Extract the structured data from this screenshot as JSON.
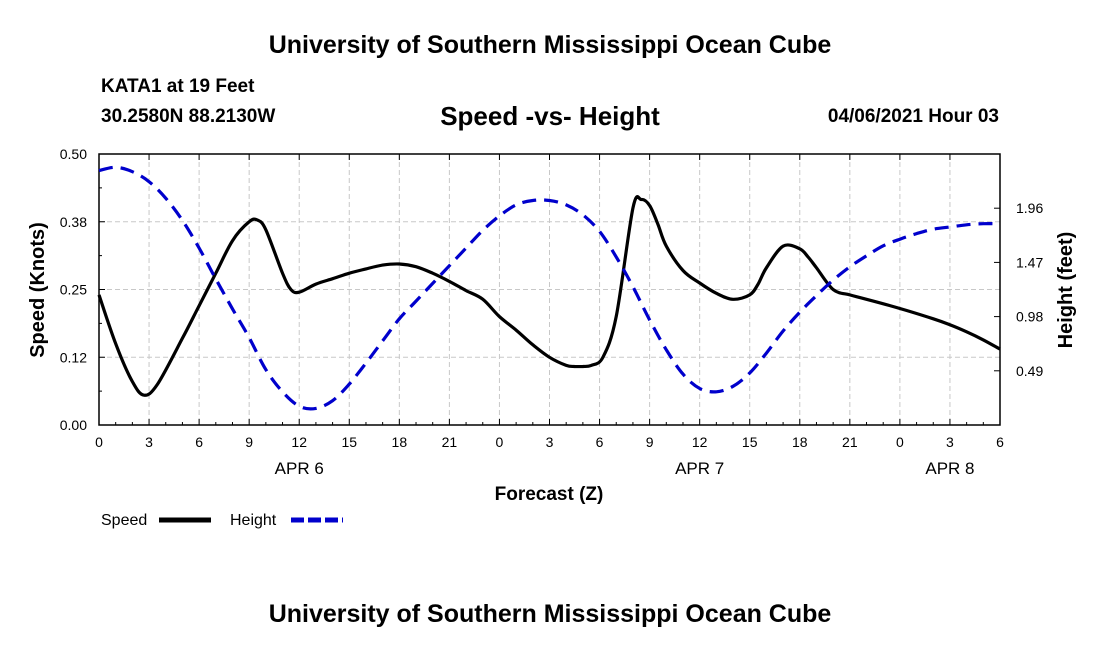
{
  "header": {
    "title": "University of Southern Mississippi Ocean Cube",
    "station": "KATA1 at 19 Feet",
    "coords": "30.2580N  88.2130W",
    "subtitle": "Speed -vs- Height",
    "datetime": "04/06/2021 Hour 03"
  },
  "footer": {
    "title": "University of Southern Mississippi Ocean Cube"
  },
  "chart_data": {
    "type": "line",
    "title": "Speed -vs- Height",
    "xlabel": "Forecast (Z)",
    "ylabel": "Speed (Knots)",
    "y2label": "Height (feet)",
    "x_range": [
      0,
      54
    ],
    "x_tick_positions": [
      0,
      3,
      6,
      9,
      12,
      15,
      18,
      21,
      24,
      27,
      30,
      33,
      36,
      39,
      42,
      45,
      48,
      51,
      54
    ],
    "x_tick_labels": [
      "0",
      "3",
      "6",
      "9",
      "12",
      "15",
      "18",
      "21",
      "0",
      "3",
      "6",
      "9",
      "12",
      "15",
      "18",
      "21",
      "0",
      "3",
      "6"
    ],
    "date_labels": [
      {
        "x": 12,
        "label": "APR 6"
      },
      {
        "x": 36,
        "label": "APR 7"
      },
      {
        "x": 51,
        "label": "APR 8"
      }
    ],
    "ylim": [
      0,
      0.5
    ],
    "y_ticks": [
      0,
      0.125,
      0.25,
      0.375,
      0.5
    ],
    "y_tick_labels": [
      "0.00",
      "0.12",
      "0.25",
      "0.38",
      "0.50"
    ],
    "y2lim": [
      0,
      2.45
    ],
    "y2_ticks": [
      0.49,
      0.98,
      1.47,
      1.96
    ],
    "y2_tick_labels": [
      "0.49",
      "0.98",
      "1.47",
      "1.96"
    ],
    "grid": true,
    "legend": [
      {
        "name": "Speed",
        "color": "#000000",
        "dash": "solid"
      },
      {
        "name": "Height",
        "color": "#0000cc",
        "dash": "dashed"
      }
    ],
    "series": [
      {
        "name": "Speed",
        "axis": "left",
        "color": "#000000",
        "x": [
          0,
          1,
          2,
          2.7,
          3.5,
          5,
          6,
          7,
          8,
          9,
          9.5,
          10,
          11,
          11.5,
          12,
          13,
          14,
          15,
          16,
          17,
          18,
          19,
          20,
          21,
          22,
          23,
          24,
          25,
          26,
          27,
          28,
          28.5,
          29,
          29.5,
          30.2,
          31,
          32,
          32.5,
          33,
          33.5,
          34,
          35,
          36,
          37,
          38,
          39,
          39.5,
          40,
          41,
          42,
          42.5,
          43,
          44,
          45,
          46,
          48,
          50,
          51,
          52,
          53,
          54
        ],
        "values": [
          0.24,
          0.15,
          0.08,
          0.055,
          0.075,
          0.16,
          0.22,
          0.28,
          0.34,
          0.375,
          0.378,
          0.36,
          0.28,
          0.25,
          0.245,
          0.26,
          0.27,
          0.28,
          0.288,
          0.295,
          0.297,
          0.292,
          0.28,
          0.265,
          0.248,
          0.232,
          0.2,
          0.175,
          0.148,
          0.125,
          0.11,
          0.108,
          0.108,
          0.11,
          0.125,
          0.2,
          0.4,
          0.416,
          0.405,
          0.37,
          0.33,
          0.285,
          0.262,
          0.243,
          0.232,
          0.24,
          0.26,
          0.29,
          0.33,
          0.325,
          0.31,
          0.29,
          0.25,
          0.24,
          0.232,
          0.215,
          0.196,
          0.185,
          0.172,
          0.157,
          0.14
        ]
      },
      {
        "name": "Height",
        "axis": "right",
        "color": "#0000cc",
        "x": [
          0,
          1,
          2,
          3,
          4,
          5,
          6,
          7,
          8,
          9,
          10,
          11,
          12,
          13,
          14,
          15,
          16,
          17,
          18,
          19,
          20,
          21,
          22,
          23,
          24,
          25,
          26,
          27,
          28,
          29,
          30,
          31,
          32,
          33,
          34,
          35,
          36,
          37,
          38,
          39,
          40,
          41,
          42,
          43,
          44,
          45,
          46,
          47,
          48,
          49,
          50,
          51,
          52,
          53,
          54
        ],
        "values": [
          2.3,
          2.33,
          2.29,
          2.2,
          2.05,
          1.85,
          1.6,
          1.32,
          1.05,
          0.79,
          0.5,
          0.3,
          0.17,
          0.15,
          0.22,
          0.37,
          0.56,
          0.76,
          0.96,
          1.12,
          1.28,
          1.44,
          1.6,
          1.76,
          1.89,
          1.99,
          2.03,
          2.03,
          1.99,
          1.9,
          1.75,
          1.52,
          1.25,
          0.95,
          0.68,
          0.46,
          0.33,
          0.3,
          0.35,
          0.47,
          0.65,
          0.85,
          1.02,
          1.17,
          1.31,
          1.43,
          1.53,
          1.62,
          1.68,
          1.73,
          1.77,
          1.79,
          1.81,
          1.82,
          1.82
        ]
      }
    ]
  }
}
